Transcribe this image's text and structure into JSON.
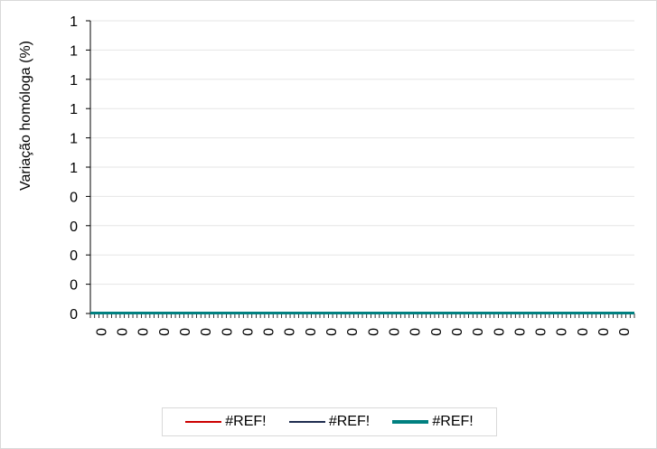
{
  "chart_data": {
    "type": "line",
    "title": "",
    "xlabel": "",
    "ylabel": "Variação homóloga (%)",
    "y_tick_labels": [
      "0",
      "0",
      "0",
      "0",
      "0",
      "1",
      "1",
      "1",
      "1",
      "1",
      "1"
    ],
    "x_tick_label": "0",
    "x_label_count": 26,
    "x_minor_tick_count": 128,
    "grid": true,
    "legend_position": "bottom",
    "series": [
      {
        "name": "#REF!",
        "color": "#cc0000",
        "values": []
      },
      {
        "name": "#REF!",
        "color": "#1f2d4f",
        "values": []
      },
      {
        "name": "#REF!",
        "color": "#008080",
        "values": []
      }
    ],
    "colors": {
      "grid": "#e6e6e6",
      "axis": "#000000",
      "baseline": "#008080"
    }
  }
}
